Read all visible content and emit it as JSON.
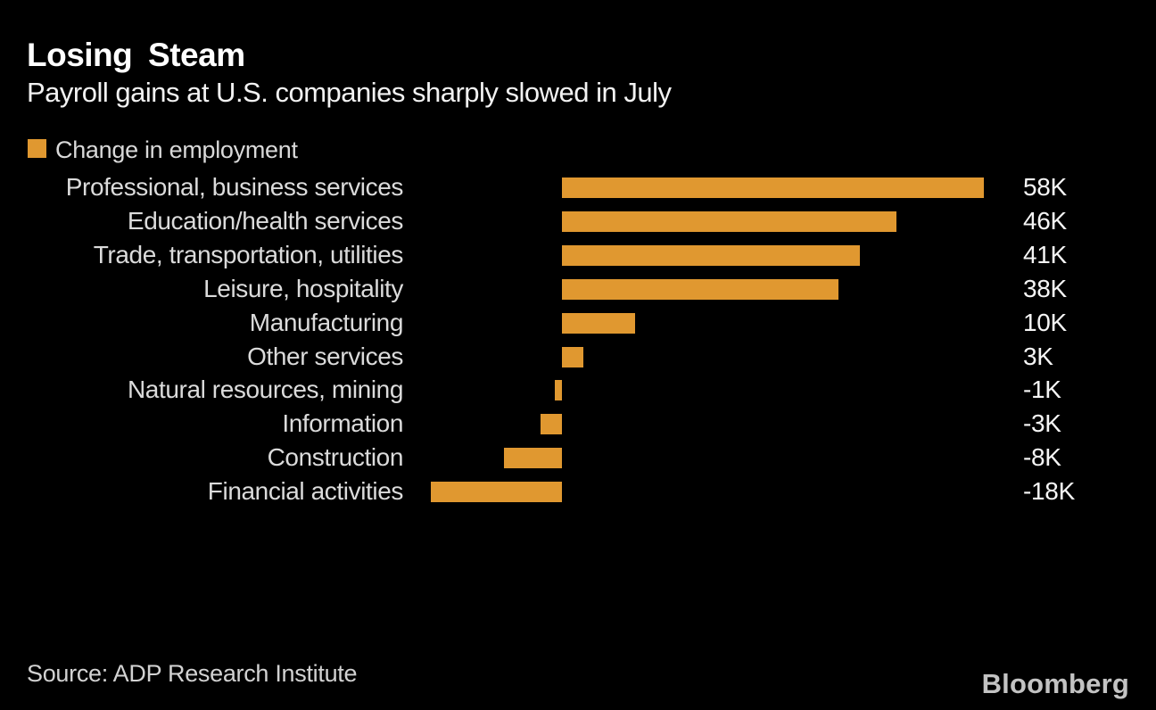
{
  "chart_data": {
    "type": "bar",
    "orientation": "horizontal",
    "title": "Losing Steam",
    "subtitle": "Payroll gains at U.S. companies sharply slowed in July",
    "series_name": "Change in employment",
    "categories": [
      "Professional, business services",
      "Education/health services",
      "Trade, transportation, utilities",
      "Leisure, hospitality",
      "Manufacturing",
      "Other services",
      "Natural resources, mining",
      "Information",
      "Construction",
      "Financial activities"
    ],
    "values": [
      58,
      46,
      41,
      38,
      10,
      3,
      -1,
      -3,
      -8,
      -18
    ],
    "value_labels": [
      "58K",
      "46K",
      "41K",
      "38K",
      "10K",
      "3K",
      "-1K",
      "-3K",
      "-8K",
      "-18K"
    ],
    "unit_suffix": "K",
    "xlim": [
      -18,
      58
    ],
    "grid": false,
    "legend_position": "top-left",
    "bar_color": "#E09830"
  },
  "legend": {
    "label": "Change in employment",
    "swatch_color": "#E09830"
  },
  "footer": {
    "source": "Source: ADP Research Institute",
    "logo": "Bloomberg"
  },
  "colors": {
    "background": "#000000",
    "title": "#FFFFFF",
    "subtitle": "#F2F2F2",
    "category_label": "#DBDBDB",
    "value_label": "#F5F5F5",
    "legend_label": "#D9D9D9",
    "source": "#D2D2D2",
    "logo": "#C3C3C3",
    "accent": "#E09830"
  }
}
